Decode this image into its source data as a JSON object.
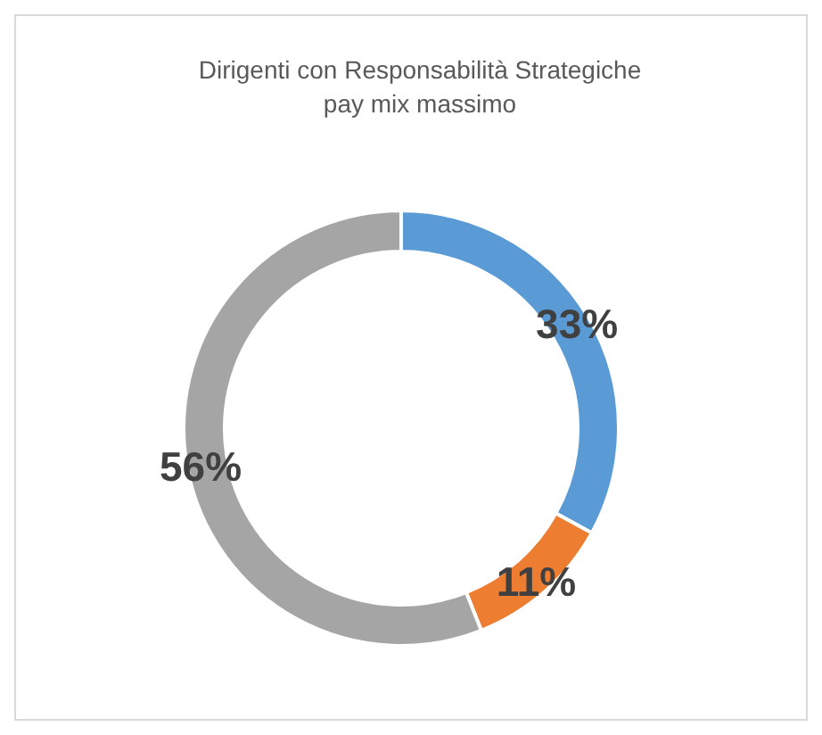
{
  "chart_data": {
    "type": "donut",
    "title": "Dirigenti con Responsabilità  Strategiche\npay mix massimo",
    "categories": [
      null,
      null,
      null
    ],
    "values": [
      33,
      11,
      56
    ],
    "colors": [
      "#5b9bd5",
      "#ed7d31",
      "#a5a5a5"
    ],
    "value_labels": [
      "33%",
      "11%",
      "56%"
    ]
  }
}
